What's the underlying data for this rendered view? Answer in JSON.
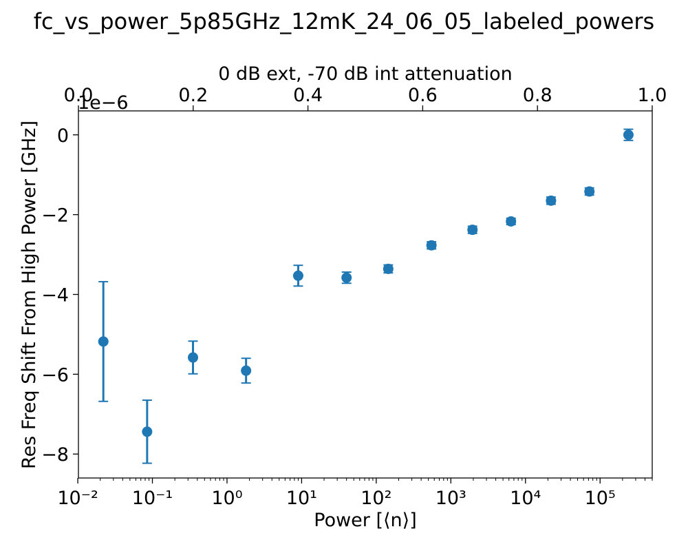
{
  "chart_data": {
    "type": "scatter",
    "title": "fc_vs_power_5p85GHz_12mK_24_06_05_labeled_powers",
    "xlabel": "Power [⟨n⟩]",
    "ylabel": "Res Freq Shift From High Power [GHz]",
    "top_xlabel": "0 dB ext, -70 dB int attenuation",
    "y_offset_label": "1e−6",
    "x_scale": "log",
    "xlim": [
      0.0102,
      500000
    ],
    "ylim": [
      -8.6e-06,
      6e-07
    ],
    "top_xlim": [
      0.0,
      1.0
    ],
    "grid": false,
    "color": "#1f77b4",
    "x_ticks": [
      {
        "value": 0.01,
        "label": "10⁻²"
      },
      {
        "value": 0.1,
        "label": "10⁻¹"
      },
      {
        "value": 1,
        "label": "10⁰"
      },
      {
        "value": 10,
        "label": "10¹"
      },
      {
        "value": 100,
        "label": "10²"
      },
      {
        "value": 1000,
        "label": "10³"
      },
      {
        "value": 10000,
        "label": "10⁴"
      },
      {
        "value": 100000,
        "label": "10⁵"
      }
    ],
    "y_ticks": [
      {
        "value": 0,
        "label": "0"
      },
      {
        "value": -2e-06,
        "label": "−2"
      },
      {
        "value": -4e-06,
        "label": "−4"
      },
      {
        "value": -6e-06,
        "label": "−6"
      },
      {
        "value": -8e-06,
        "label": "−8"
      }
    ],
    "top_ticks": [
      {
        "value": 0.0,
        "label": "0.0"
      },
      {
        "value": 0.2,
        "label": "0.2"
      },
      {
        "value": 0.4,
        "label": "0.4"
      },
      {
        "value": 0.6,
        "label": "0.6"
      },
      {
        "value": 0.8,
        "label": "0.8"
      },
      {
        "value": 1.0,
        "label": "1.0"
      }
    ],
    "series": [
      {
        "points": [
          {
            "x": 0.022,
            "y": -5.18e-06,
            "err": 1.5e-06
          },
          {
            "x": 0.085,
            "y": -7.44e-06,
            "err": 7.9e-07
          },
          {
            "x": 0.35,
            "y": -5.58e-06,
            "err": 4.1e-07
          },
          {
            "x": 1.8,
            "y": -5.91e-06,
            "err": 3.1e-07
          },
          {
            "x": 9.0,
            "y": -3.53e-06,
            "err": 2.6e-07
          },
          {
            "x": 40,
            "y": -3.58e-06,
            "err": 1.4e-07
          },
          {
            "x": 145,
            "y": -3.36e-06,
            "err": 1e-07
          },
          {
            "x": 550,
            "y": -2.77e-06,
            "err": 9e-08
          },
          {
            "x": 1950,
            "y": -2.38e-06,
            "err": 9e-08
          },
          {
            "x": 6400,
            "y": -2.17e-06,
            "err": 8e-08
          },
          {
            "x": 22000,
            "y": -1.65e-06,
            "err": 9e-08
          },
          {
            "x": 72000,
            "y": -1.42e-06,
            "err": 9e-08
          },
          {
            "x": 240000,
            "y": 0.0,
            "err": 1.4e-07
          }
        ]
      }
    ]
  }
}
